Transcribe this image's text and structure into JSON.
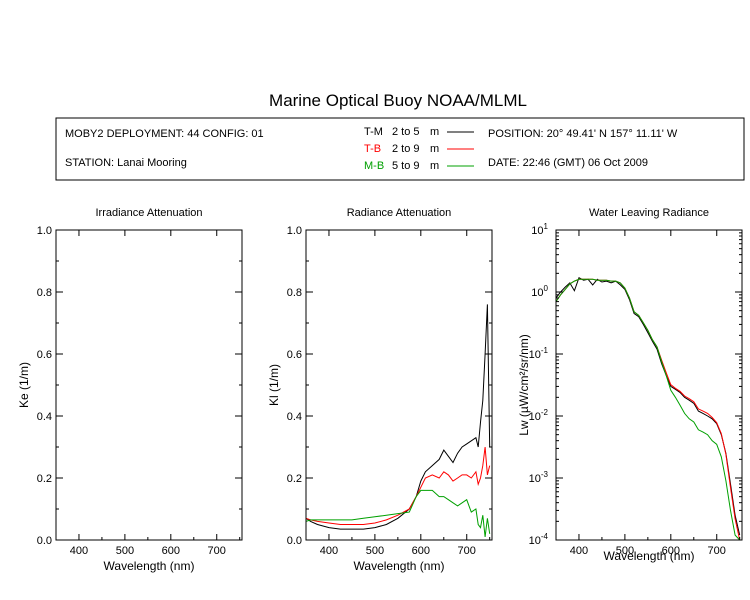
{
  "title": "Marine Optical Buoy NOAA/MLML",
  "info": {
    "deployment": "MOBY2 DEPLOYMENT: 44 CONFIG: 01",
    "station": "STATION: Lanai Mooring",
    "position": "POSITION: 20° 49.41' N   157° 11.11' W",
    "date": "DATE: 22:46 (GMT) 06 Oct 2009",
    "legend": [
      {
        "name": "T-M",
        "range": "2 to 5",
        "unit": "m",
        "color": "#000000"
      },
      {
        "name": "T-B",
        "range": "2 to 9",
        "unit": "m",
        "color": "#ff0000"
      },
      {
        "name": "M-B",
        "range": "5 to 9",
        "unit": "m",
        "color": "#00a000"
      }
    ]
  },
  "chart_data": [
    {
      "id": "irradiance",
      "type": "line",
      "title": "Irradiance Attenuation",
      "xlabel": "Wavelength (nm)",
      "ylabel": "Ke  (1/m)",
      "xlim": [
        350,
        755
      ],
      "ylim": [
        0,
        1
      ],
      "xticks": [
        400,
        500,
        600,
        700
      ],
      "yticks": [
        0,
        0.2,
        0.4,
        0.6,
        0.8,
        1.0
      ],
      "ytick_labels": [
        "0.0",
        "0.2",
        "0.4",
        "0.6",
        "0.8",
        "1.0"
      ],
      "series": []
    },
    {
      "id": "radiance",
      "type": "line",
      "title": "Radiance Attenuation",
      "xlabel": "Wavelength (nm)",
      "ylabel": "Kl  (1/m)",
      "xlim": [
        350,
        755
      ],
      "ylim": [
        0,
        1
      ],
      "xticks": [
        400,
        500,
        600,
        700
      ],
      "yticks": [
        0,
        0.2,
        0.4,
        0.6,
        0.8,
        1.0
      ],
      "ytick_labels": [
        "0.0",
        "0.2",
        "0.4",
        "0.6",
        "0.8",
        "1.0"
      ],
      "series": [
        {
          "name": "T-M",
          "color": "#000000",
          "x": [
            350,
            360,
            375,
            400,
            425,
            450,
            475,
            500,
            525,
            550,
            575,
            590,
            600,
            610,
            625,
            640,
            650,
            660,
            670,
            680,
            690,
            700,
            710,
            720,
            725,
            730,
            735,
            740,
            745,
            750
          ],
          "y": [
            0.07,
            0.06,
            0.05,
            0.04,
            0.035,
            0.035,
            0.035,
            0.04,
            0.05,
            0.07,
            0.1,
            0.14,
            0.19,
            0.22,
            0.24,
            0.26,
            0.29,
            0.27,
            0.25,
            0.28,
            0.3,
            0.31,
            0.32,
            0.33,
            0.3,
            0.38,
            0.45,
            0.6,
            0.76,
            0.3
          ]
        },
        {
          "name": "T-B",
          "color": "#ff0000",
          "x": [
            350,
            360,
            375,
            400,
            425,
            450,
            475,
            500,
            525,
            550,
            575,
            590,
            600,
            610,
            625,
            640,
            650,
            660,
            670,
            680,
            690,
            700,
            710,
            720,
            725,
            730,
            735,
            740,
            745,
            750
          ],
          "y": [
            0.07,
            0.065,
            0.06,
            0.055,
            0.05,
            0.05,
            0.05,
            0.055,
            0.065,
            0.08,
            0.1,
            0.14,
            0.17,
            0.2,
            0.21,
            0.2,
            0.22,
            0.21,
            0.19,
            0.2,
            0.21,
            0.21,
            0.2,
            0.22,
            0.18,
            0.2,
            0.24,
            0.3,
            0.21,
            0.24
          ]
        },
        {
          "name": "M-B",
          "color": "#00a000",
          "x": [
            350,
            360,
            375,
            400,
            425,
            450,
            475,
            500,
            525,
            550,
            575,
            590,
            600,
            610,
            625,
            640,
            650,
            660,
            670,
            680,
            690,
            700,
            710,
            720,
            725,
            730,
            735,
            740,
            745,
            750
          ],
          "y": [
            0.06,
            0.065,
            0.065,
            0.065,
            0.065,
            0.065,
            0.07,
            0.075,
            0.08,
            0.085,
            0.09,
            0.14,
            0.16,
            0.16,
            0.16,
            0.14,
            0.14,
            0.13,
            0.12,
            0.11,
            0.12,
            0.13,
            0.09,
            0.1,
            0.05,
            0.04,
            0.08,
            0.01,
            0.07,
            0.02
          ]
        }
      ]
    },
    {
      "id": "water-leaving",
      "type": "line",
      "title": "Water Leaving Radiance",
      "xlabel": "Wavelength (nm)",
      "ylabel": "Lw  (µW/cm²/sr/nm)",
      "yscale": "log",
      "xlim": [
        350,
        755
      ],
      "ylim": [
        0.0001,
        10
      ],
      "xticks": [
        400,
        500,
        600,
        700
      ],
      "yticks": [
        0.0001,
        0.001,
        0.01,
        0.1,
        1,
        10
      ],
      "ytick_exponents": [
        "-4",
        "-3",
        "-2",
        "-1",
        "0",
        "1"
      ],
      "series": [
        {
          "name": "T-M",
          "color": "#000000",
          "x": [
            350,
            360,
            370,
            380,
            390,
            400,
            410,
            420,
            430,
            440,
            450,
            460,
            470,
            480,
            490,
            500,
            510,
            520,
            530,
            540,
            550,
            560,
            570,
            580,
            590,
            600,
            610,
            620,
            630,
            640,
            650,
            660,
            670,
            680,
            690,
            700,
            710,
            720,
            730,
            740,
            750
          ],
          "y": [
            0.8,
            1.0,
            1.2,
            1.4,
            1.05,
            1.7,
            1.55,
            1.6,
            1.3,
            1.6,
            1.45,
            1.5,
            1.4,
            1.5,
            1.3,
            1.1,
            0.75,
            0.45,
            0.4,
            0.3,
            0.22,
            0.16,
            0.12,
            0.07,
            0.045,
            0.03,
            0.027,
            0.024,
            0.02,
            0.018,
            0.016,
            0.012,
            0.011,
            0.01,
            0.009,
            0.0075,
            0.005,
            0.0025,
            0.0008,
            0.00025,
            0.00012
          ]
        },
        {
          "name": "T-B",
          "color": "#ff0000",
          "x": [
            350,
            360,
            370,
            380,
            390,
            400,
            410,
            420,
            430,
            440,
            450,
            460,
            470,
            480,
            490,
            500,
            510,
            520,
            530,
            540,
            550,
            560,
            570,
            580,
            590,
            600,
            610,
            620,
            630,
            640,
            650,
            660,
            670,
            680,
            690,
            700,
            710,
            720,
            730,
            740,
            750
          ],
          "y": [
            0.7,
            0.9,
            1.1,
            1.35,
            1.5,
            1.6,
            1.6,
            1.6,
            1.6,
            1.55,
            1.55,
            1.55,
            1.5,
            1.5,
            1.4,
            1.15,
            0.8,
            0.48,
            0.42,
            0.32,
            0.24,
            0.17,
            0.13,
            0.08,
            0.05,
            0.032,
            0.028,
            0.025,
            0.021,
            0.019,
            0.017,
            0.013,
            0.012,
            0.011,
            0.0095,
            0.0078,
            0.0052,
            0.0024,
            0.0007,
            0.00022,
            0.0001
          ]
        },
        {
          "name": "M-B",
          "color": "#00a000",
          "x": [
            350,
            360,
            370,
            380,
            390,
            400,
            410,
            420,
            430,
            440,
            450,
            460,
            470,
            480,
            490,
            500,
            510,
            520,
            530,
            540,
            550,
            560,
            570,
            580,
            590,
            600,
            610,
            620,
            630,
            640,
            650,
            660,
            670,
            680,
            690,
            700,
            710,
            720,
            730,
            740,
            750
          ],
          "y": [
            0.7,
            0.9,
            1.1,
            1.35,
            1.5,
            1.6,
            1.6,
            1.6,
            1.6,
            1.55,
            1.55,
            1.55,
            1.5,
            1.5,
            1.4,
            1.15,
            0.8,
            0.48,
            0.42,
            0.32,
            0.24,
            0.17,
            0.13,
            0.075,
            0.045,
            0.026,
            0.02,
            0.015,
            0.011,
            0.009,
            0.008,
            0.006,
            0.0055,
            0.005,
            0.004,
            0.0035,
            0.0022,
            0.0009,
            0.0003,
            0.00012,
            0.0001
          ]
        }
      ]
    }
  ]
}
